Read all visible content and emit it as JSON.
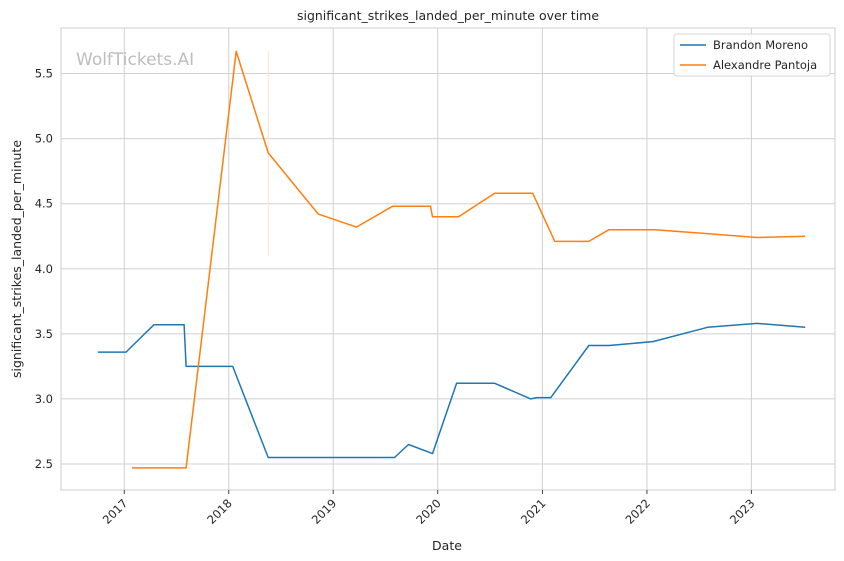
{
  "chart_data": {
    "type": "line",
    "title": "significant_strikes_landed_per_minute over time",
    "xlabel": "Date",
    "ylabel": "significant_strikes_landed_per_minute",
    "xlim": [
      "2016-05-25",
      "2023-10-20"
    ],
    "ylim": [
      2.3,
      5.85
    ],
    "x_ticks": [
      "2017",
      "2018",
      "2019",
      "2020",
      "2021",
      "2022",
      "2023"
    ],
    "y_ticks": [
      2.5,
      3.0,
      3.5,
      4.0,
      4.5,
      5.0,
      5.5
    ],
    "grid": true,
    "legend_position": "top-right",
    "watermark": "WolfTickets.AI",
    "series": [
      {
        "name": "Brandon Moreno",
        "color": "#1f77b4",
        "points": [
          [
            "2016-10-01",
            3.36
          ],
          [
            "2017-01-07",
            3.36
          ],
          [
            "2017-04-15",
            3.57
          ],
          [
            "2017-07-29",
            3.57
          ],
          [
            "2017-08-05",
            3.25
          ],
          [
            "2018-01-01",
            3.25
          ],
          [
            "2018-01-15",
            3.25
          ],
          [
            "2018-05-19",
            2.55
          ],
          [
            "2019-08-03",
            2.55
          ],
          [
            "2019-09-21",
            2.65
          ],
          [
            "2019-12-14",
            2.58
          ],
          [
            "2020-03-07",
            3.12
          ],
          [
            "2020-07-18",
            3.12
          ],
          [
            "2020-11-21",
            3.0
          ],
          [
            "2020-12-12",
            3.01
          ],
          [
            "2021-01-30",
            3.01
          ],
          [
            "2021-06-12",
            3.41
          ],
          [
            "2021-08-21",
            3.41
          ],
          [
            "2022-01-22",
            3.44
          ],
          [
            "2022-08-01",
            3.55
          ],
          [
            "2023-01-21",
            3.58
          ],
          [
            "2023-07-08",
            3.55
          ]
        ]
      },
      {
        "name": "Alexandre Pantoja",
        "color": "#ff7f0e",
        "points": [
          [
            "2017-01-28",
            2.47
          ],
          [
            "2017-08-05",
            2.47
          ],
          [
            "2018-01-27",
            5.67
          ],
          [
            "2018-05-19",
            4.89
          ],
          [
            "2018-11-10",
            4.42
          ],
          [
            "2019-03-23",
            4.32
          ],
          [
            "2019-07-27",
            4.48
          ],
          [
            "2019-12-07",
            4.48
          ],
          [
            "2019-12-14",
            4.4
          ],
          [
            "2020-03-14",
            4.4
          ],
          [
            "2020-07-18",
            4.58
          ],
          [
            "2020-11-28",
            4.58
          ],
          [
            "2021-02-13",
            4.21
          ],
          [
            "2021-06-12",
            4.21
          ],
          [
            "2021-08-21",
            4.3
          ],
          [
            "2022-01-29",
            4.3
          ],
          [
            "2022-07-30",
            4.27
          ],
          [
            "2023-01-21",
            4.24
          ],
          [
            "2023-07-08",
            4.25
          ]
        ]
      }
    ]
  }
}
